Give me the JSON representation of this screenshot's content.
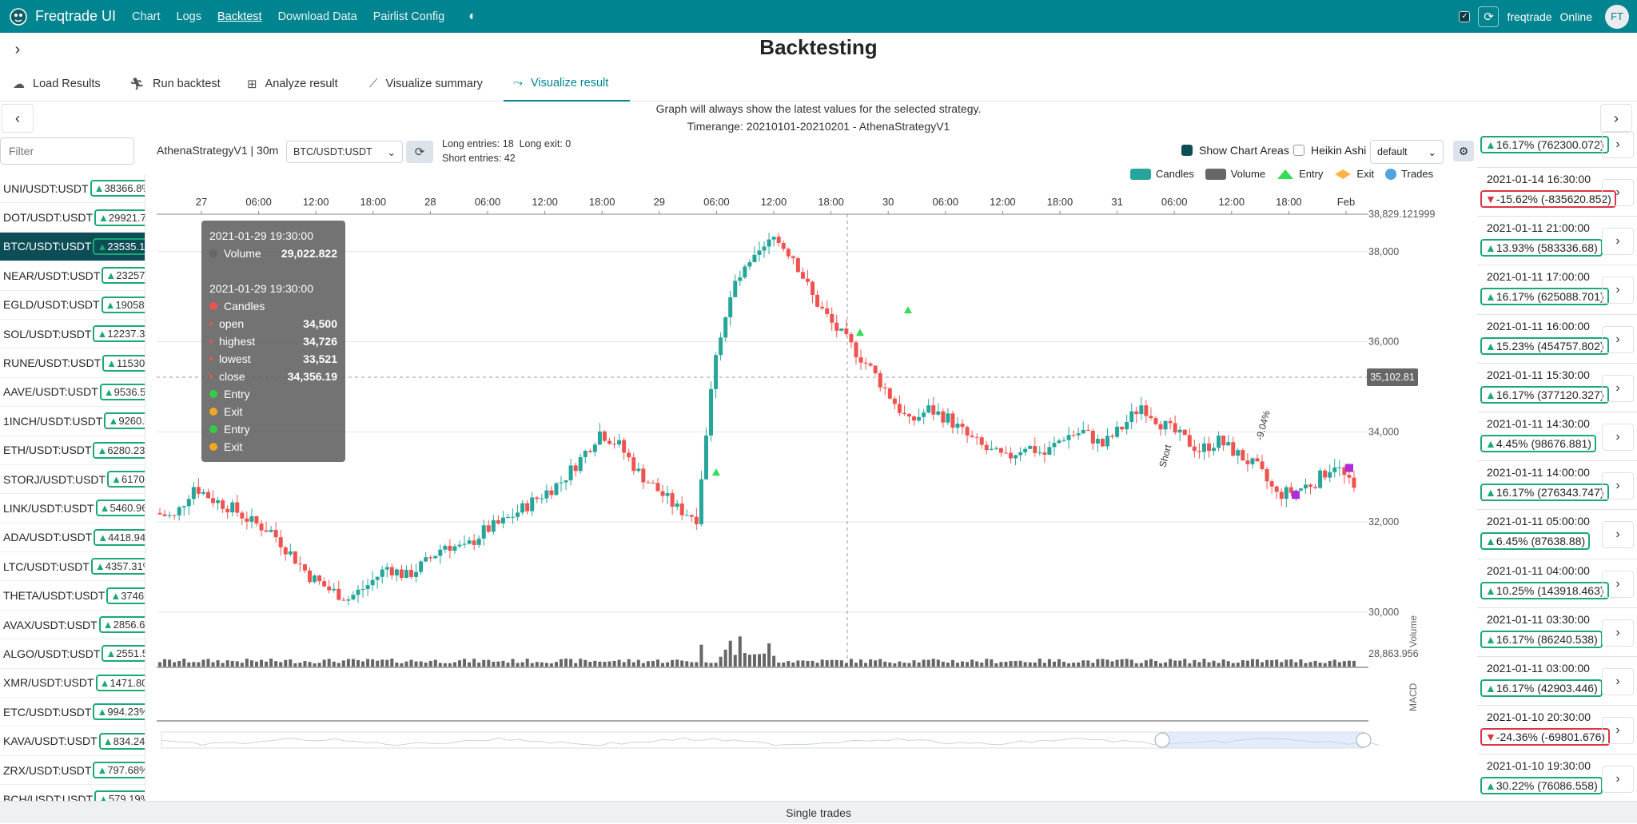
{
  "nav": {
    "brand": "Freqtrade UI",
    "links": [
      "Chart",
      "Logs",
      "Backtest",
      "Download Data",
      "Pairlist Config"
    ],
    "active_link": "Backtest",
    "user": "freqtrade",
    "status": "Online",
    "avatar": "FT"
  },
  "page": {
    "title": "Backtesting"
  },
  "tabs": [
    {
      "label": "Load Results",
      "icon": "cloud-upload-icon"
    },
    {
      "label": "Run backtest",
      "icon": "run-icon"
    },
    {
      "label": "Analyze result",
      "icon": "analyze-icon"
    },
    {
      "label": "Visualize summary",
      "icon": "chart-line-icon"
    },
    {
      "label": "Visualize result",
      "icon": "chart-trend-icon",
      "active": true
    }
  ],
  "info": {
    "line1": "Graph will always show the latest values for the selected strategy.",
    "line2": "Timerange: 20210101-20210201 - AthenaStrategyV1"
  },
  "filter": {
    "placeholder": "Filter"
  },
  "pairs": [
    {
      "name": "UNI/USDT:USDT",
      "value": "38366.8%"
    },
    {
      "name": "DOT/USDT:USDT",
      "value": "29921.7"
    },
    {
      "name": "BTC/USDT:USDT",
      "value": "23535.1",
      "active": true
    },
    {
      "name": "NEAR/USDT:USDT",
      "value": "23257"
    },
    {
      "name": "EGLD/USDT:USDT",
      "value": "19058."
    },
    {
      "name": "SOL/USDT:USDT",
      "value": "12237.3"
    },
    {
      "name": "RUNE/USDT:USDT",
      "value": "11530"
    },
    {
      "name": "AAVE/USDT:USDT",
      "value": "9536.5"
    },
    {
      "name": "1INCH/USDT:USDT",
      "value": "9260."
    },
    {
      "name": "ETH/USDT:USDT",
      "value": "6280.23"
    },
    {
      "name": "STORJ/USDT:USDT",
      "value": "6170."
    },
    {
      "name": "LINK/USDT:USDT",
      "value": "5460.96"
    },
    {
      "name": "ADA/USDT:USDT",
      "value": "4418.94"
    },
    {
      "name": "LTC/USDT:USDT",
      "value": "4357.31%"
    },
    {
      "name": "THETA/USDT:USDT",
      "value": "3746."
    },
    {
      "name": "AVAX/USDT:USDT",
      "value": "2856.6"
    },
    {
      "name": "ALGO/USDT:USDT",
      "value": "2551.5"
    },
    {
      "name": "XMR/USDT:USDT",
      "value": "1471.80"
    },
    {
      "name": "ETC/USDT:USDT",
      "value": "994.23%"
    },
    {
      "name": "KAVA/USDT:USDT",
      "value": "834.24"
    },
    {
      "name": "ZRX/USDT:USDT",
      "value": "797.68%"
    },
    {
      "name": "BCH/USDT:USDT",
      "value": "579.19%"
    }
  ],
  "toolbar": {
    "strategy": "AthenaStrategyV1 | 30m",
    "pair": "BTC/USDT:USDT",
    "long_entries": "Long entries: 18",
    "long_exit": "Long exit: 0",
    "short_entries": "Short entries: 42",
    "show_areas": "Show Chart Areas",
    "heikin": "Heikin Ashi",
    "layout": "default"
  },
  "legend": [
    {
      "label": "Candles",
      "color": "#26a69a"
    },
    {
      "label": "Volume",
      "color": "#666666"
    },
    {
      "label": "Entry",
      "color": "#33dd55"
    },
    {
      "label": "Exit",
      "color": "#ffb347"
    },
    {
      "label": "Trades",
      "color": "#4fa3e0"
    }
  ],
  "tooltip": {
    "vol_time": "2021-01-29 19:30:00",
    "vol_label": "Volume",
    "vol_value": "29,022.822",
    "candle_time": "2021-01-29 19:30:00",
    "candles_label": "Candles",
    "open_label": "open",
    "open_value": "34,500",
    "high_label": "highest",
    "high_value": "34,726",
    "low_label": "lowest",
    "low_value": "33,521",
    "close_label": "close",
    "close_value": "34,356.19",
    "entry_label": "Entry",
    "exit_label": "Exit"
  },
  "chart_data": {
    "type": "candlestick",
    "pair": "BTC/USDT:USDT",
    "x_ticks": [
      "27",
      "06:00",
      "12:00",
      "18:00",
      "28",
      "06:00",
      "12:00",
      "18:00",
      "29",
      "06:00",
      "12:00",
      "18:00",
      "30",
      "06:00",
      "12:00",
      "18:00",
      "31",
      "06:00",
      "12:00",
      "18:00",
      "Feb"
    ],
    "y_ticks": [
      "38,000",
      "36,000",
      "34,000",
      "32,000",
      "30,000"
    ],
    "y_top_label": "38,829.121999",
    "y_bottom_label": "28,863.956",
    "ylim": [
      28863.956,
      38829.121999
    ],
    "pointer_value": "35,102.81",
    "volume_axis_label": "Volume",
    "macd_axis_label": "MACD",
    "annotations": [
      {
        "text": "Short",
        "x_index": 52,
        "y": 33200
      },
      {
        "text": "-9.04%",
        "x_index": 57,
        "y": 33800
      }
    ],
    "close_path": [
      32200,
      32100,
      32800,
      32500,
      32300,
      32000,
      31800,
      31300,
      30800,
      30500,
      30300,
      30600,
      31000,
      30800,
      31100,
      31500,
      31400,
      31800,
      32000,
      32300,
      32600,
      32900,
      33400,
      34000,
      33700,
      33100,
      32700,
      32300,
      32100,
      35800,
      37300,
      37800,
      38300,
      37900,
      37000,
      36400,
      35900,
      35400,
      34800,
      34200,
      34500,
      34300,
      33900,
      33600,
      33400,
      33700,
      33500,
      33900,
      34000,
      33700,
      34100,
      34600,
      34200,
      33900,
      33600,
      33800,
      33500,
      33200,
      32600,
      32700,
      32900,
      33300,
      32700
    ]
  },
  "trades": [
    {
      "date": "",
      "result": "16.17% (762300.072)",
      "dir": "up"
    },
    {
      "date": "2021-01-14 16:30:00",
      "result": "-15.62% (-835620.852)",
      "dir": "down"
    },
    {
      "date": "2021-01-11 21:00:00",
      "result": "13.93% (583336.68)",
      "dir": "up"
    },
    {
      "date": "2021-01-11 17:00:00",
      "result": "16.17% (625088.701)",
      "dir": "up"
    },
    {
      "date": "2021-01-11 16:00:00",
      "result": "15.23% (454757.802)",
      "dir": "up"
    },
    {
      "date": "2021-01-11 15:30:00",
      "result": "16.17% (377120.327)",
      "dir": "up"
    },
    {
      "date": "2021-01-11 14:30:00",
      "result": "4.45% (98676.881)",
      "dir": "up"
    },
    {
      "date": "2021-01-11 14:00:00",
      "result": "16.17% (276343.747)",
      "dir": "up"
    },
    {
      "date": "2021-01-11 05:00:00",
      "result": "6.45% (87638.88)",
      "dir": "up"
    },
    {
      "date": "2021-01-11 04:00:00",
      "result": "10.25% (143918.463)",
      "dir": "up"
    },
    {
      "date": "2021-01-11 03:30:00",
      "result": "16.17% (86240.538)",
      "dir": "up"
    },
    {
      "date": "2021-01-11 03:00:00",
      "result": "16.17% (42903.446)",
      "dir": "up"
    },
    {
      "date": "2021-01-10 20:30:00",
      "result": "-24.36% (-69801.676)",
      "dir": "down"
    },
    {
      "date": "2021-01-10 19:30:00",
      "result": "30.22% (76086.558)",
      "dir": "up"
    }
  ],
  "footer": {
    "label": "Single trades"
  }
}
